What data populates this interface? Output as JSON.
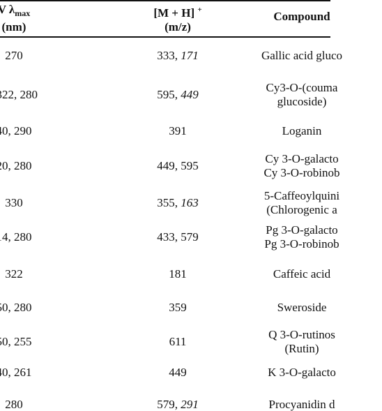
{
  "headers": {
    "uv_line1": "V λ",
    "uv_sub": "max",
    "uv_line2": "(nm)",
    "mz_line1": "[M + H]",
    "mz_sup": "+",
    "mz_line2": "(m/z)",
    "compound": "Compound"
  },
  "rows": [
    {
      "uv": "270",
      "mz_plain": "333, ",
      "mz_italic": "171",
      "compound_lines": [
        "Gallic acid gluco"
      ]
    },
    {
      "uv": ", 322, 280",
      "mz_plain": "595, ",
      "mz_italic": "449",
      "compound_lines": [
        "Cy3-O-(couma",
        "glucoside)"
      ]
    },
    {
      "uv": "40, 290",
      "mz_plain": "391",
      "mz_italic": "",
      "compound_lines": [
        "Loganin"
      ]
    },
    {
      "uv": "20, 280",
      "mz_plain": "449, 595",
      "mz_italic": "",
      "compound_lines": [
        "Cy 3-O-galacto",
        "Cy 3-O-robinob"
      ]
    },
    {
      "uv": "330",
      "mz_plain": "355, ",
      "mz_italic": "163",
      "compound_lines": [
        "5-Caffeoylquini",
        "(Chlorogenic a"
      ]
    },
    {
      "uv": "14, 280",
      "mz_plain": "433, 579",
      "mz_italic": "",
      "compound_lines": [
        "Pg 3-O-galacto",
        "Pg 3-O-robinob"
      ]
    },
    {
      "uv": "322",
      "mz_plain": "181",
      "mz_italic": "",
      "compound_lines": [
        "Caffeic acid"
      ]
    },
    {
      "uv": "50, 280",
      "mz_plain": "359",
      "mz_italic": "",
      "compound_lines": [
        "Sweroside"
      ]
    },
    {
      "uv": "50, 255",
      "mz_plain": "611",
      "mz_italic": "",
      "compound_lines": [
        "Q 3-O-rutinos",
        "(Rutin)"
      ]
    },
    {
      "uv": "40, 261",
      "mz_plain": "449",
      "mz_italic": "",
      "compound_lines": [
        "K 3-O-galacto"
      ]
    },
    {
      "uv": "280",
      "mz_plain": "579, ",
      "mz_italic": "291",
      "compound_lines": [
        "Procyanidin d"
      ]
    }
  ]
}
